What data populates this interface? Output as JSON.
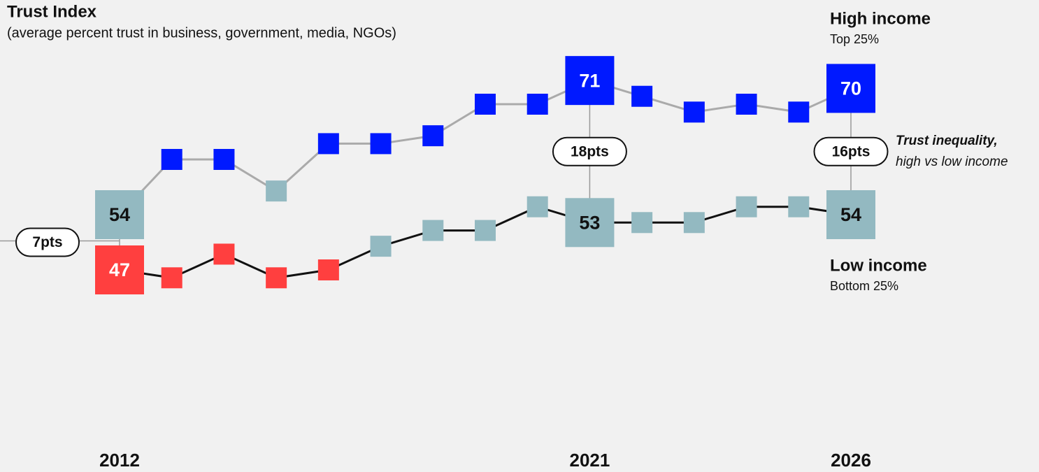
{
  "chart_data": {
    "type": "line",
    "title": "Trust Index",
    "subtitle": "(average percent trust in business, government, media, NGOs)",
    "categories": [
      "2012",
      null,
      null,
      null,
      null,
      null,
      null,
      null,
      null,
      "2021",
      null,
      null,
      null,
      null,
      "2026"
    ],
    "ylim": [
      40,
      75
    ],
    "series": [
      {
        "name": "High income",
        "description": "Top 25%",
        "color": "#aaaaaa",
        "values": [
          54,
          61,
          61,
          57,
          63,
          63,
          64,
          68,
          68,
          71,
          69,
          67,
          68,
          67,
          70
        ],
        "point_colors": [
          "#93b9c1",
          "#0019ff",
          "#0019ff",
          "#93b9c1",
          "#0019ff",
          "#0019ff",
          "#0019ff",
          "#0019ff",
          "#0019ff",
          "#0019ff",
          "#0019ff",
          "#0019ff",
          "#0019ff",
          "#0019ff",
          "#0019ff"
        ]
      },
      {
        "name": "Low income",
        "description": "Bottom 25%",
        "color": "#111111",
        "values": [
          47,
          46,
          49,
          46,
          47,
          50,
          52,
          52,
          55,
          53,
          53,
          53,
          55,
          55,
          54
        ],
        "point_colors": [
          "#ff3f3f",
          "#ff3f3f",
          "#ff3f3f",
          "#ff3f3f",
          "#ff3f3f",
          "#93b9c1",
          "#93b9c1",
          "#93b9c1",
          "#93b9c1",
          "#93b9c1",
          "#93b9c1",
          "#93b9c1",
          "#93b9c1",
          "#93b9c1",
          "#93b9c1"
        ]
      }
    ],
    "annotations": [
      {
        "category_index": 0,
        "text": "7pts"
      },
      {
        "category_index": 9,
        "text": "18pts"
      },
      {
        "category_index": 14,
        "text": "16pts"
      }
    ],
    "note_lines": [
      "Trust inequality,",
      "high vs low income"
    ]
  }
}
